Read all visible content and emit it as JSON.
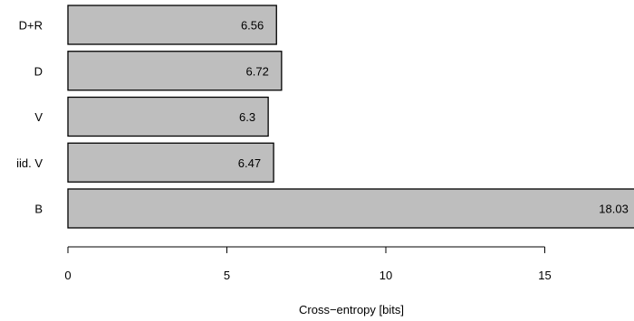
{
  "chart_data": {
    "type": "bar",
    "orientation": "horizontal",
    "categories": [
      "D+R",
      "D",
      "V",
      "iid. V",
      "B"
    ],
    "values": [
      6.56,
      6.72,
      6.3,
      6.47,
      18.03
    ],
    "value_labels": [
      "6.56",
      "6.72",
      "6.3",
      "6.47",
      "18.03"
    ],
    "xlabel": "Cross−entropy [bits]",
    "xlim": [
      0,
      18.03
    ],
    "xticks": [
      0,
      5,
      10,
      15
    ],
    "xtick_labels": [
      "0",
      "5",
      "10",
      "15"
    ],
    "grid": false,
    "colors": {
      "bar_fill": "#bebebe",
      "bar_stroke": "#000000"
    }
  }
}
